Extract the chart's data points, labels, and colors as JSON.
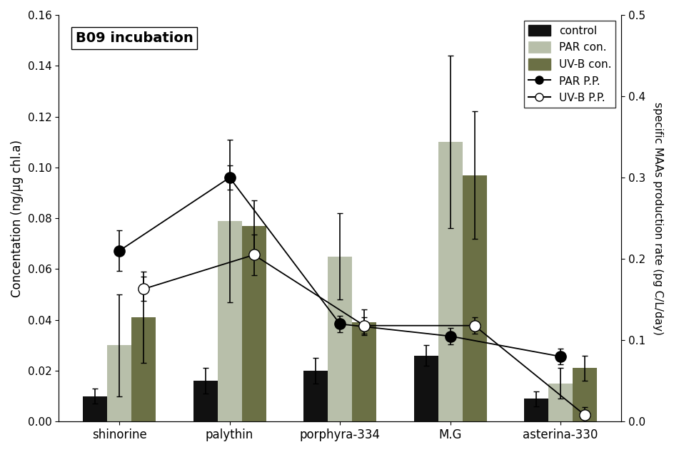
{
  "categories": [
    "shinorine",
    "palythin",
    "porphyra-334",
    "M.G",
    "asterina-330"
  ],
  "bar_width": 0.22,
  "control_values": [
    0.01,
    0.016,
    0.02,
    0.026,
    0.009
  ],
  "par_con_values": [
    0.03,
    0.079,
    0.065,
    0.11,
    0.015
  ],
  "uvb_con_values": [
    0.041,
    0.077,
    0.039,
    0.097,
    0.021
  ],
  "par_con_errors": [
    0.02,
    0.032,
    0.017,
    0.034,
    0.006
  ],
  "uvb_con_errors": [
    0.018,
    0.01,
    0.005,
    0.025,
    0.005
  ],
  "control_errors": [
    0.003,
    0.005,
    0.005,
    0.004,
    0.003
  ],
  "par_pp_values": [
    0.21,
    0.3,
    0.12,
    0.105,
    0.08
  ],
  "uvb_pp_values": [
    0.163,
    0.205,
    0.118,
    0.118,
    0.008
  ],
  "par_pp_errors": [
    0.025,
    0.015,
    0.01,
    0.01,
    0.01
  ],
  "uvb_pp_errors": [
    0.015,
    0.025,
    0.01,
    0.01,
    0.01
  ],
  "color_control": "#111111",
  "color_par_con": "#b8bfaa",
  "color_uvb_con": "#6b7045",
  "ylim_left": [
    0,
    0.16
  ],
  "ylim_right": [
    0,
    0.5
  ],
  "ylabel_left": "Concentation (ng/µg chl.a)",
  "ylabel_right": "specific MAAs production rate (pg C/L/day)",
  "title": "B09 incubation",
  "legend_labels": [
    "control",
    "PAR con.",
    "UV-B con.",
    "PAR P.P.",
    "UV-B P.P."
  ]
}
